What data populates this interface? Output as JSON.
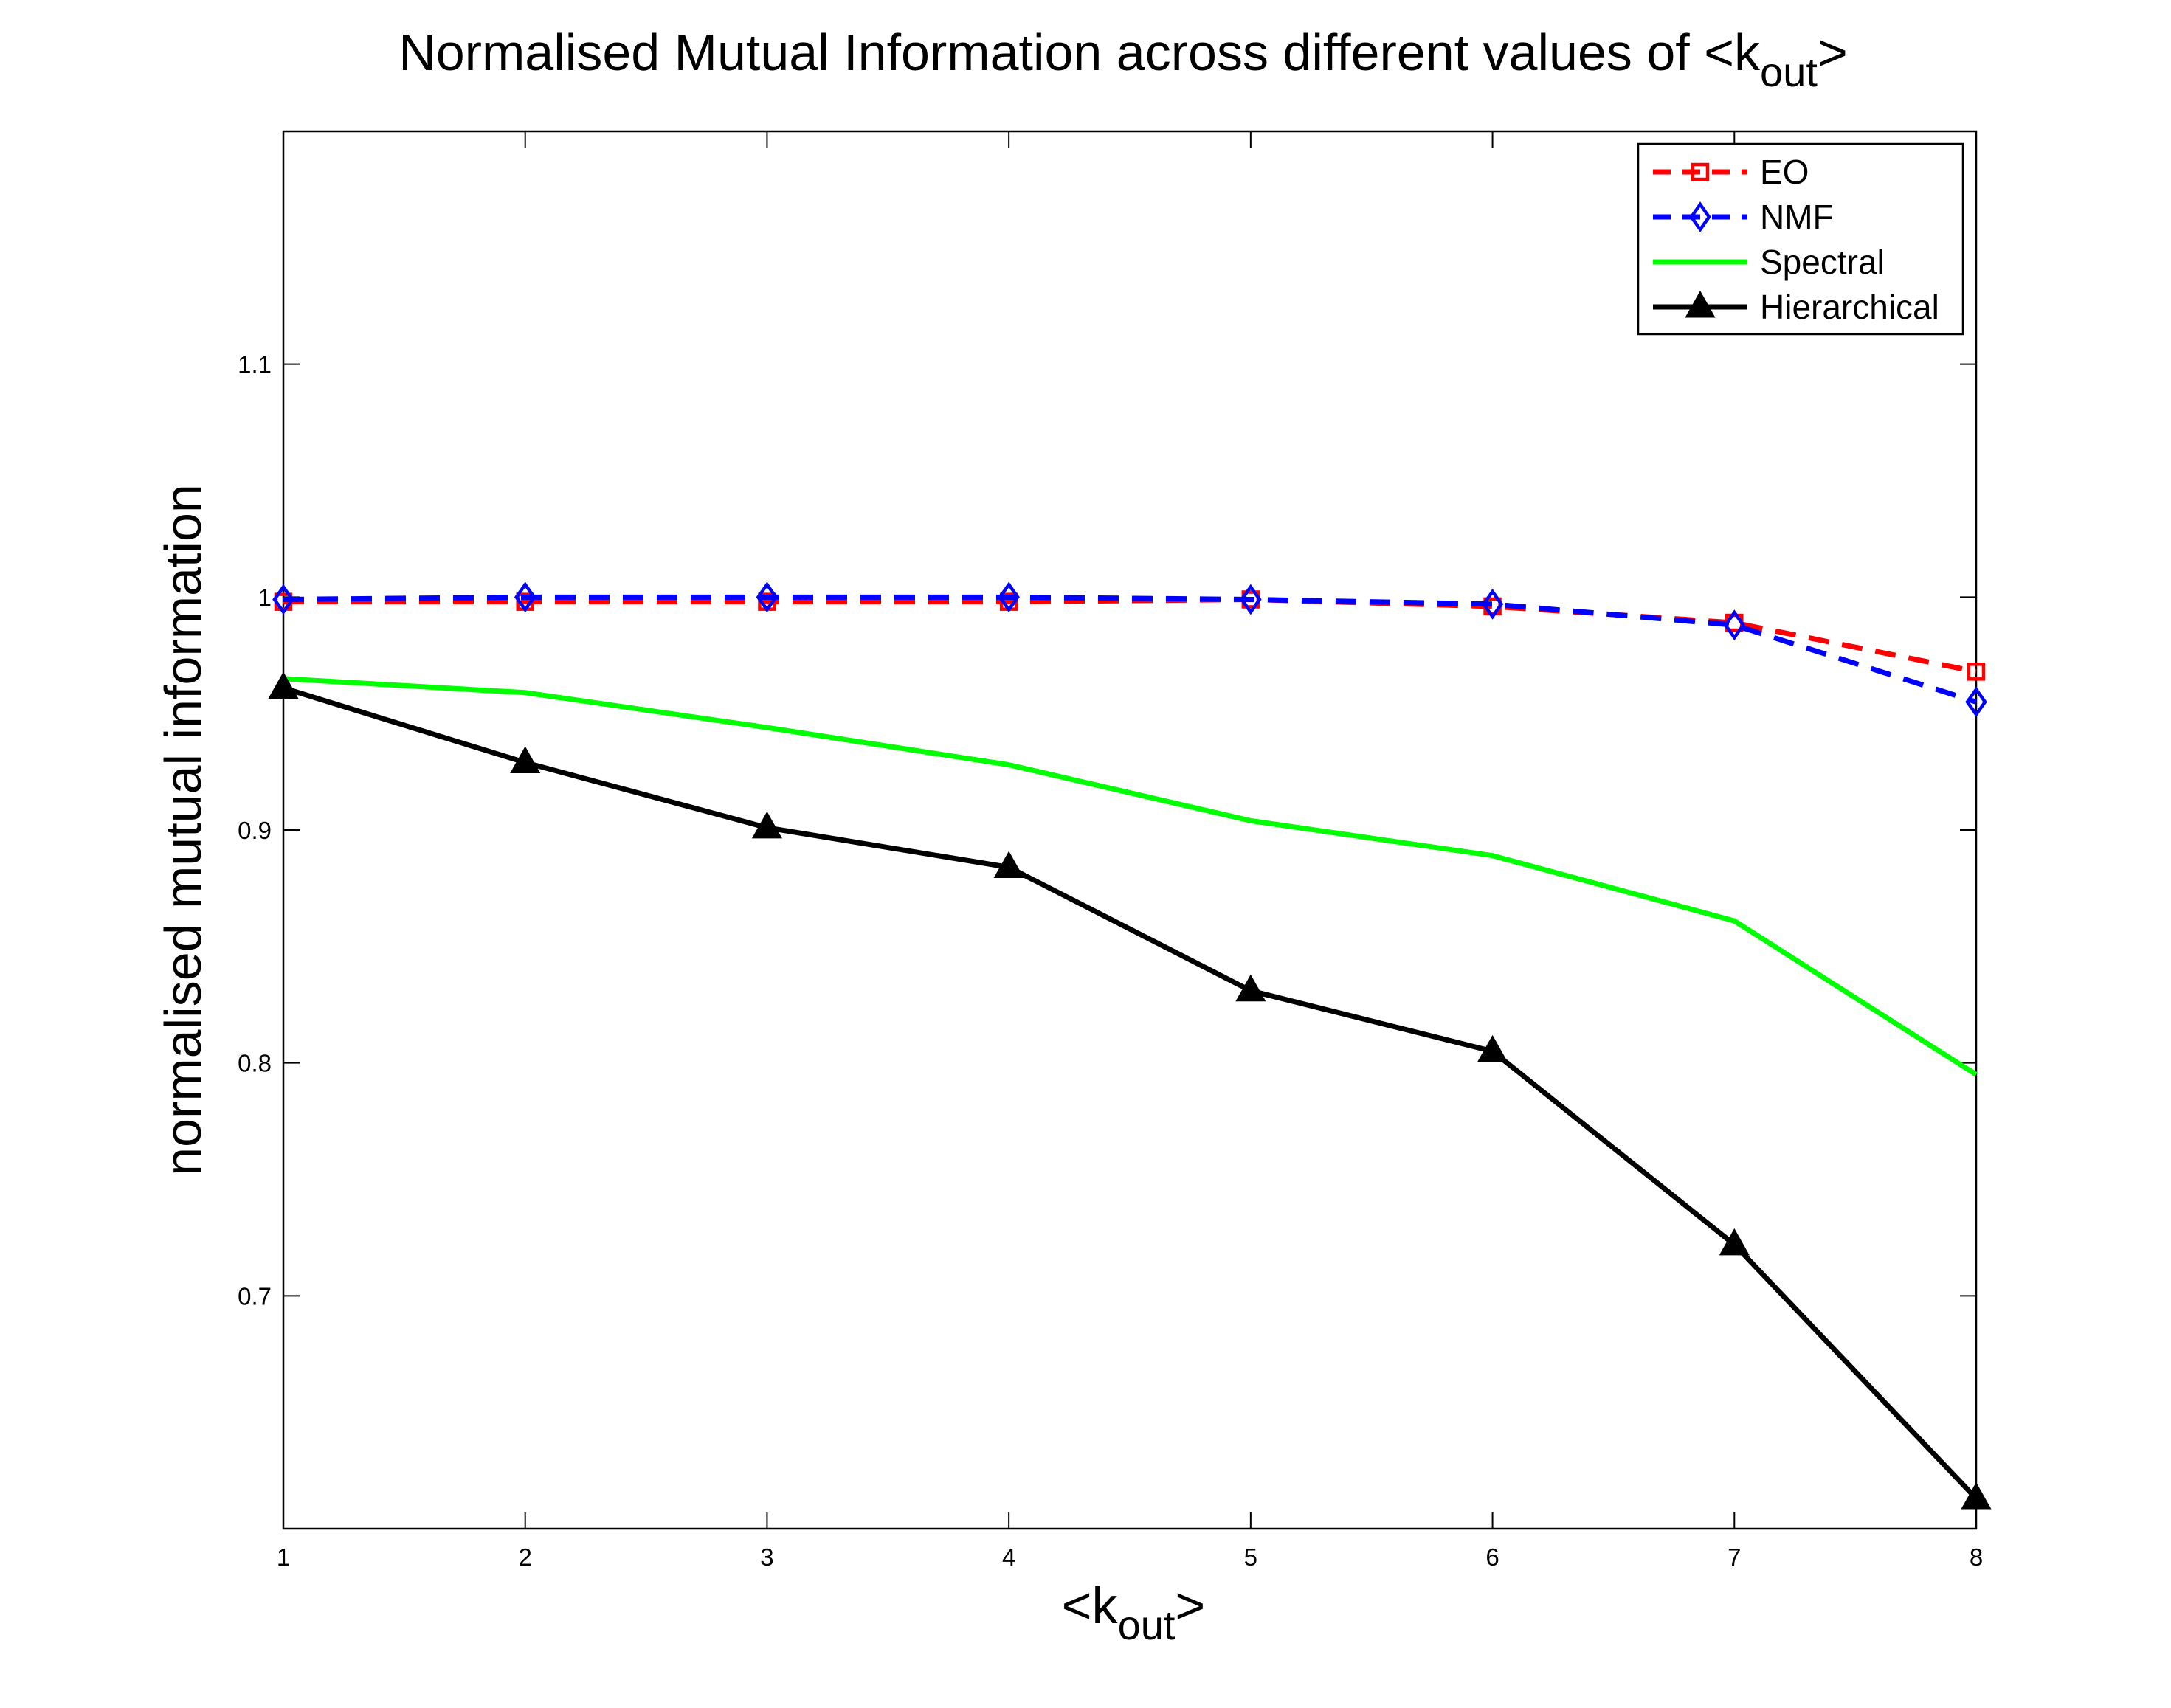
{
  "chart_data": {
    "type": "line",
    "title": "Normalised Mutual Information across different values of <k",
    "title_subscript": "out",
    "title_suffix": ">",
    "xlabel": "<k",
    "xlabel_subscript": "out",
    "xlabel_suffix": ">",
    "ylabel": "normalised mutual information",
    "x": [
      1,
      2,
      3,
      4,
      5,
      6,
      7,
      8
    ],
    "xlim": [
      1,
      8
    ],
    "ylim": [
      0.6,
      1.2
    ],
    "xticks": [
      1,
      2,
      3,
      4,
      5,
      6,
      7,
      8
    ],
    "xtick_labels": [
      "1",
      "2",
      "3",
      "4",
      "5",
      "6",
      "7",
      "8"
    ],
    "yticks": [
      0.7,
      0.8,
      0.9,
      1.0,
      1.1
    ],
    "ytick_labels": [
      "0.7",
      "0.8",
      "0.9",
      "1",
      "1.1"
    ],
    "grid": false,
    "legend_position": "top-right",
    "series": [
      {
        "name": "EO",
        "color": "#ff0000",
        "style": "dashed",
        "marker": "square",
        "values": [
          0.998,
          0.998,
          0.998,
          0.998,
          0.999,
          0.996,
          0.989,
          0.968
        ]
      },
      {
        "name": "NMF",
        "color": "#0000ff",
        "style": "dashed",
        "marker": "diamond",
        "values": [
          0.999,
          1.0,
          1.0,
          1.0,
          0.999,
          0.997,
          0.988,
          0.955
        ]
      },
      {
        "name": "Spectral",
        "color": "#00ff00",
        "style": "solid",
        "marker": "none",
        "values": [
          0.965,
          0.959,
          0.944,
          0.928,
          0.904,
          0.889,
          0.861,
          0.795
        ]
      },
      {
        "name": "Hierarchical",
        "color": "#000000",
        "style": "solid",
        "marker": "triangle",
        "values": [
          0.961,
          0.929,
          0.901,
          0.884,
          0.831,
          0.805,
          0.722,
          0.613
        ]
      }
    ]
  }
}
